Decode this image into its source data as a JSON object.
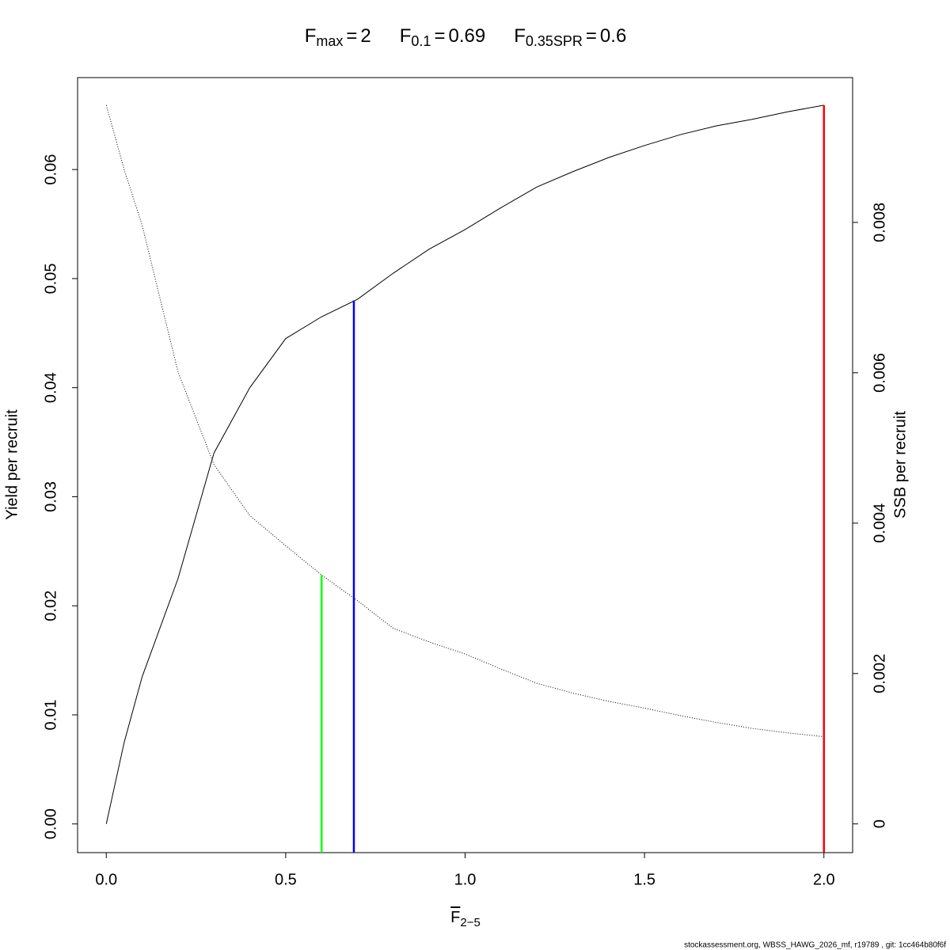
{
  "chart_data": {
    "type": "line",
    "reference_lines": [
      {
        "label": "F",
        "subscript": "max",
        "operator": "=",
        "x": 2,
        "y": 0.0659,
        "color": "#ff0000"
      },
      {
        "label": "F",
        "subscript": "0.1",
        "operator": "=",
        "x": 0.69,
        "y": 0.048,
        "color": "#0000ff"
      },
      {
        "label": "F",
        "subscript": "0.35SPR",
        "operator": "=",
        "x": 0.6,
        "y": 0.00331,
        "axis": "y2",
        "color": "#00ff00"
      }
    ],
    "xlabel": {
      "text": "F",
      "subscript": "2−5"
    },
    "ylabel": "Yield per recruit",
    "y2label": "SSB per recruit",
    "footer": "stockassessment.org, WBSS_HAWG_2026_mf, r19789 , git: 1cc464b80f6f",
    "x": [
      0,
      0.05,
      0.1,
      0.2,
      0.3,
      0.4,
      0.5,
      0.6,
      0.7,
      0.8,
      0.9,
      1.0,
      1.1,
      1.2,
      1.3,
      1.4,
      1.5,
      1.6,
      1.7,
      1.8,
      1.9,
      2.0
    ],
    "series": [
      {
        "color": "#000000",
        "values": [
          0,
          0.0075,
          0.0135,
          0.0225,
          0.034,
          0.04,
          0.0445,
          0.0465,
          0.0481,
          0.0505,
          0.0527,
          0.0545,
          0.0565,
          0.0584,
          0.0598,
          0.0611,
          0.0622,
          0.0632,
          0.064,
          0.0646,
          0.0653,
          0.0659
        ]
      },
      {
        "color": "#000000",
        "axis": "y2",
        "dashed": true,
        "values": [
          0.00956,
          0.0087,
          0.00796,
          0.00601,
          0.00478,
          0.0041,
          0.0037,
          0.00331,
          0.00297,
          0.0026,
          0.00242,
          0.00226,
          0.00206,
          0.00187,
          0.00174,
          0.00163,
          0.00154,
          0.00144,
          0.00135,
          0.00127,
          0.00121,
          0.00116
        ]
      }
    ],
    "xlim": [
      -0.08,
      2.08
    ],
    "xticks": [
      {
        "value": 0,
        "label": "0.0"
      },
      {
        "value": 0.5,
        "label": "0.5"
      },
      {
        "value": 1,
        "label": "1.0"
      },
      {
        "value": 1.5,
        "label": "1.5"
      },
      {
        "value": 2,
        "label": "2.0"
      }
    ],
    "ylim": [
      -0.00263,
      0.06843
    ],
    "yticks": [
      {
        "value": 0,
        "label": "0.00"
      },
      {
        "value": 0.01,
        "label": "0.01"
      },
      {
        "value": 0.02,
        "label": "0.02"
      },
      {
        "value": 0.03,
        "label": "0.03"
      },
      {
        "value": 0.04,
        "label": "0.04"
      },
      {
        "value": 0.05,
        "label": "0.05"
      },
      {
        "value": 0.06,
        "label": "0.06"
      }
    ],
    "y2lim": [
      -0.000382,
      0.009926
    ],
    "y2ticks": [
      0,
      0.002,
      0.004,
      0.006,
      0.008
    ]
  }
}
